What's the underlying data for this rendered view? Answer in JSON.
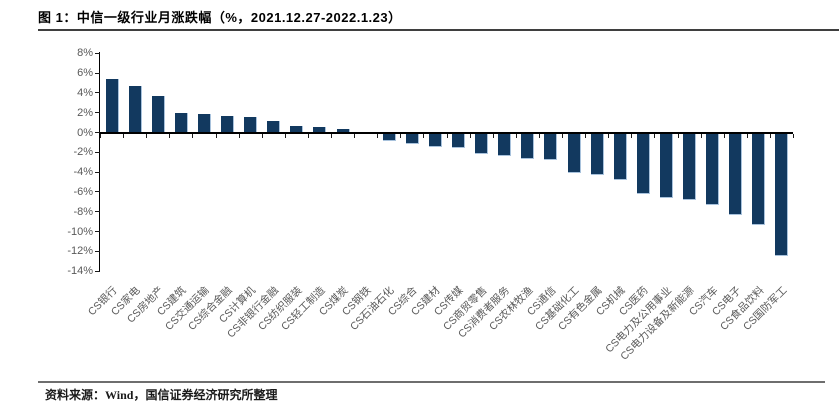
{
  "figure": {
    "title": "图 1：中信一级行业月涨跌幅（%，2021.12.27-2022.1.23）",
    "source_note": "资料来源：Wind，国信证券经济研究所整理"
  },
  "colors": {
    "bar_fill": "#12395f",
    "bar_edge_highlight": "#a8c2dc",
    "axis_line": "#000000",
    "axis_label": "#595959",
    "title_text": "#000000",
    "top_rule": "#3f3f3f",
    "bottom_rule": "#6e6e6e"
  },
  "chart_data": {
    "type": "bar",
    "title": "中信一级行业月涨跌幅（%，2021.12.27-2022.1.23）",
    "xlabel": "",
    "ylabel": "",
    "unit": "%",
    "grid": false,
    "legend_position": "none",
    "ylim": [
      -14,
      8
    ],
    "y_tick_step": 2,
    "y_tick_labels": [
      "8%",
      "6%",
      "4%",
      "2%",
      "0%",
      "-2%",
      "-4%",
      "-6%",
      "-8%",
      "-10%",
      "-12%",
      "-14%"
    ],
    "categories": [
      "CS银行",
      "CS家电",
      "CS房地产",
      "CS建筑",
      "CS交通运输",
      "CS综合金融",
      "CS计算机",
      "CS非银行金融",
      "CS纺织服装",
      "CS轻工制造",
      "CS煤炭",
      "CS钢铁",
      "CS石油石化",
      "CS综合",
      "CS建材",
      "CS传媒",
      "CS商贸零售",
      "CS消费者服务",
      "CS农林牧渔",
      "CS通信",
      "CS基础化工",
      "CS有色金属",
      "CS机械",
      "CS医药",
      "CS电力及公用事业",
      "CS电力设备及新能源",
      "CS汽车",
      "CS电子",
      "CS食品饮料",
      "CS国防军工"
    ],
    "values": [
      5.4,
      4.7,
      3.7,
      2.0,
      1.9,
      1.7,
      1.6,
      1.2,
      0.7,
      0.6,
      0.4,
      0.1,
      -0.8,
      -1.1,
      -1.4,
      -1.5,
      -2.1,
      -2.3,
      -2.6,
      -2.7,
      -4.0,
      -4.2,
      -4.7,
      -6.1,
      -6.5,
      -6.7,
      -7.2,
      -8.2,
      -9.2,
      -12.4
    ]
  }
}
